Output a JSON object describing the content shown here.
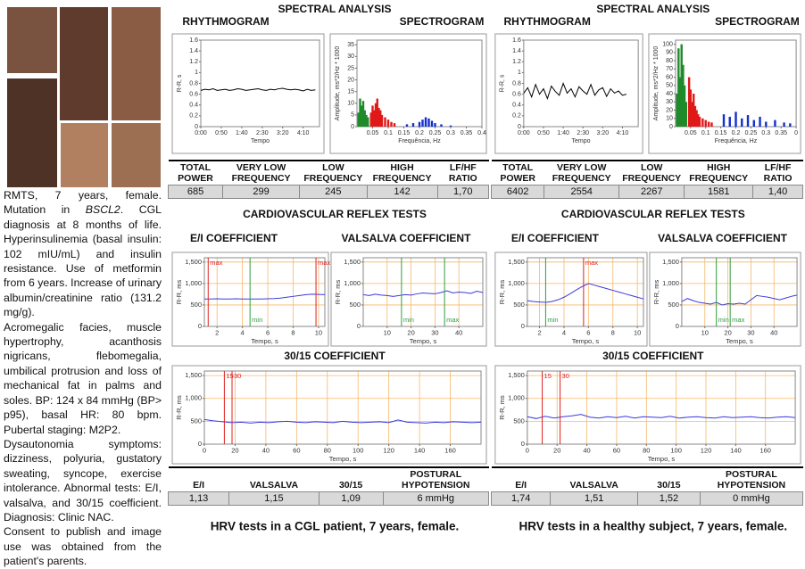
{
  "case": {
    "paragraphs": [
      [
        "RMTS, 7 years, female. Mutation in ",
        "BSCL2",
        ". CGL diagnosis at 8 months of life. Hyperinsulinemia (basal insulin: 102 mIU/mL) and insulin resistance. Use of metformin from 6 years. Increase of urinary albumin/creatinine ratio (131.2 mg/g)."
      ],
      [
        "Acromegalic facies, muscle hypertrophy, acanthosis nigricans, flebomegalia, umbilical protrusion and loss of mechanical fat in palms and soles. BP: 124 x 84 mmHg (BP> p95), basal HR: 80 bpm. Pubertal staging: M2P2."
      ],
      [
        "Dysautonomia symptoms: dizziness, polyuria, gustatory sweating, syncope, exercise intolerance. Abnormal tests: E/I, valsalva, and 30/15 coefficient. Diagnosis: Clinic NAC."
      ],
      [
        "Consent to publish and image use was obtained from the patient's parents."
      ]
    ]
  },
  "panels": [
    {
      "spectral_title": "SPECTRAL ANALYSIS",
      "spectral_table": {
        "headers": [
          "TOTAL POWER",
          "VERY LOW FREQUENCY",
          "LOW FREQUENCY",
          "HIGH FREQUENCY",
          "LF/HF RATIO"
        ],
        "values": [
          "685",
          "299",
          "245",
          "142",
          "1,70"
        ]
      },
      "reflex_title": "CARDIOVASCULAR REFLEX TESTS",
      "reflex_table": {
        "headers": [
          "E/I",
          "VALSALVA",
          "30/15",
          "POSTURAL HYPOTENSION"
        ],
        "values": [
          "1,13",
          "1,15",
          "1,09",
          "6 mmHg"
        ]
      },
      "caption": "HRV tests in a CGL patient, 7 years, female."
    },
    {
      "spectral_title": "SPECTRAL ANALYSIS",
      "spectral_table": {
        "headers": [
          "TOTAL POWER",
          "VERY LOW FREQUENCY",
          "LOW FREQUENCY",
          "HIGH FREQUENCY",
          "LF/HF RATIO"
        ],
        "values": [
          "6402",
          "2554",
          "2267",
          "1581",
          "1,40"
        ]
      },
      "reflex_title": "CARDIOVASCULAR REFLEX TESTS",
      "reflex_table": {
        "headers": [
          "E/I",
          "VALSALVA",
          "30/15",
          "POSTURAL HYPOTENSION"
        ],
        "values": [
          "1,74",
          "1,51",
          "1,52",
          "0 mmHg"
        ]
      },
      "caption": "HRV tests in a healthy subject, 7 years, female."
    }
  ],
  "chart_data": [
    {
      "type": "line",
      "title": "RHYTHMOGRAM",
      "xlabel": "Tempo",
      "ylabel": "R-R, s",
      "x": [
        0,
        10,
        20,
        30,
        40,
        50,
        60,
        70,
        80,
        90,
        100,
        110,
        120,
        130,
        140,
        150,
        160,
        170,
        180,
        190,
        200,
        210,
        220,
        230,
        240,
        250,
        260,
        270,
        280
      ],
      "series": [
        {
          "color": "#000000",
          "values": [
            0.67,
            0.69,
            0.68,
            0.7,
            0.67,
            0.68,
            0.69,
            0.67,
            0.68,
            0.7,
            0.69,
            0.67,
            0.68,
            0.69,
            0.7,
            0.68,
            0.67,
            0.69,
            0.68,
            0.7,
            0.71,
            0.69,
            0.68,
            0.69,
            0.68,
            0.66,
            0.69,
            0.67,
            0.68
          ]
        }
      ],
      "xlim": [
        0,
        290
      ],
      "ylim": [
        0,
        1.6
      ],
      "xticks": [
        {
          "value": 0,
          "label": "0:00"
        },
        {
          "value": 50,
          "label": "0:50"
        },
        {
          "value": 100,
          "label": "1:40"
        },
        {
          "value": 150,
          "label": "2:30"
        },
        {
          "value": 200,
          "label": "3:20"
        },
        {
          "value": 250,
          "label": "4:10"
        }
      ],
      "yticks": [
        0,
        0.2,
        0.4,
        0.6,
        0.8,
        1,
        1.2,
        1.4,
        1.6
      ],
      "grid": false
    },
    {
      "type": "bar",
      "title": "SPECTROGRAM",
      "xlabel": "Frequência, Hz",
      "ylabel": "Amplitude, ms*2/Hz * 1000",
      "series": [
        {
          "color": "#1f8a2a",
          "x": [
            0.005,
            0.01,
            0.015,
            0.02,
            0.025,
            0.03,
            0.035
          ],
          "values": [
            6,
            12,
            9,
            11,
            7,
            5,
            4
          ]
        },
        {
          "color": "#e01818",
          "x": [
            0.045,
            0.05,
            0.055,
            0.06,
            0.065,
            0.07,
            0.075,
            0.08,
            0.09,
            0.1,
            0.11,
            0.12
          ],
          "values": [
            6,
            9,
            7,
            10,
            12,
            8,
            7,
            5,
            4,
            3,
            2,
            1.5
          ]
        },
        {
          "color": "#1030d0",
          "x": [
            0.16,
            0.18,
            0.2,
            0.21,
            0.22,
            0.23,
            0.24,
            0.25,
            0.27,
            0.3
          ],
          "values": [
            1,
            1.5,
            2,
            3,
            4,
            3.5,
            2.5,
            1.5,
            1,
            0.5
          ]
        }
      ],
      "xlim": [
        0,
        0.4
      ],
      "ylim": [
        0,
        37
      ],
      "xticks": [
        0.05,
        0.1,
        0.15,
        0.2,
        0.25,
        0.3,
        0.35,
        0.4
      ],
      "yticks": [
        0,
        5,
        10,
        15,
        20,
        25,
        30,
        35
      ],
      "grid": false
    },
    {
      "type": "line",
      "title": "E/I COEFFICIENT",
      "xlabel": "Tempo, s",
      "ylabel": "R-R, ms",
      "x": [
        1,
        1.5,
        2,
        2.5,
        3,
        3.5,
        4,
        4.5,
        5,
        5.5,
        6,
        6.5,
        7,
        7.5,
        8,
        8.5,
        9,
        9.5,
        10,
        10.5
      ],
      "series": [
        {
          "color": "#3a3ae0",
          "values": [
            640,
            640,
            645,
            640,
            640,
            645,
            640,
            640,
            640,
            640,
            645,
            650,
            660,
            680,
            700,
            720,
            740,
            750,
            745,
            740
          ]
        }
      ],
      "markers": [
        {
          "label": "max",
          "x": 1.3,
          "color": "#e02020"
        },
        {
          "label": "min",
          "x": 4.6,
          "color": "#2e9e3e"
        },
        {
          "label": "max",
          "x": 9.8,
          "color": "#e02020"
        }
      ],
      "xlim": [
        1,
        10.5
      ],
      "ylim": [
        0,
        1600
      ],
      "xticks": [
        2,
        4,
        6,
        8,
        10
      ],
      "yticks": [
        0,
        500,
        {
          "value": 1000,
          "label": "1,000"
        },
        {
          "value": 1500,
          "label": "1,500"
        }
      ],
      "grid": true,
      "grid_color": "#f5b86b"
    },
    {
      "type": "line",
      "title": "VALSALVA COEFFICIENT",
      "xlabel": "Tempo, s",
      "ylabel": "R-R, ms",
      "x": [
        0,
        2.5,
        5,
        7.5,
        10,
        12.5,
        15,
        17.5,
        20,
        22.5,
        25,
        27.5,
        30,
        32.5,
        35,
        37.5,
        40,
        42.5,
        45,
        47.5,
        50
      ],
      "series": [
        {
          "color": "#3a3ae0",
          "values": [
            740,
            720,
            750,
            730,
            720,
            700,
            720,
            740,
            730,
            760,
            780,
            770,
            760,
            790,
            830,
            780,
            800,
            790,
            770,
            820,
            790
          ]
        }
      ],
      "markers": [
        {
          "label": "min",
          "x": 16,
          "color": "#2e9e3e"
        },
        {
          "label": "max",
          "x": 34,
          "color": "#2e9e3e"
        }
      ],
      "xlim": [
        0,
        50
      ],
      "ylim": [
        0,
        1600
      ],
      "xticks": [
        10,
        20,
        30,
        40
      ],
      "yticks": [
        0,
        500,
        {
          "value": 1000,
          "label": "1,000"
        },
        {
          "value": 1500,
          "label": "1,500"
        }
      ],
      "grid": true,
      "grid_color": "#f5b86b"
    },
    {
      "type": "line",
      "title": "30/15 COEFFICIENT",
      "xlabel": "Tempo, s",
      "ylabel": "R-R, ms",
      "x": [
        0,
        6,
        12,
        18,
        24,
        30,
        36,
        42,
        48,
        54,
        60,
        66,
        72,
        78,
        84,
        90,
        96,
        102,
        108,
        114,
        120,
        126,
        132,
        138,
        144,
        150,
        156,
        162,
        168,
        174,
        180
      ],
      "series": [
        {
          "color": "#3a3ae0",
          "values": [
            540,
            510,
            490,
            470,
            480,
            460,
            480,
            470,
            490,
            500,
            480,
            470,
            490,
            480,
            470,
            500,
            480,
            470,
            480,
            490,
            470,
            530,
            480,
            470,
            460,
            480,
            470,
            490,
            480,
            470,
            480
          ]
        }
      ],
      "markers": [
        {
          "label": "15",
          "x": 13,
          "color": "#e02020"
        },
        {
          "label": "30",
          "x": 18,
          "color": "#e02020"
        }
      ],
      "xlim": [
        0,
        180
      ],
      "ylim": [
        0,
        1600
      ],
      "xticks": [
        0,
        20,
        40,
        60,
        80,
        100,
        120,
        140,
        160
      ],
      "yticks": [
        0,
        500,
        {
          "value": 1000,
          "label": "1,000"
        },
        {
          "value": 1500,
          "label": "1,500"
        }
      ],
      "grid": true,
      "grid_color": "#f5b86b"
    },
    {
      "type": "line",
      "title": "RHYTHMOGRAM",
      "xlabel": "Tempo",
      "ylabel": "R-R, s",
      "x": [
        0,
        10,
        20,
        30,
        40,
        50,
        60,
        70,
        80,
        90,
        100,
        110,
        120,
        130,
        140,
        150,
        160,
        170,
        180,
        190,
        200,
        210,
        220,
        230,
        240,
        250,
        260
      ],
      "series": [
        {
          "color": "#000000",
          "values": [
            0.62,
            0.72,
            0.55,
            0.78,
            0.6,
            0.7,
            0.52,
            0.75,
            0.65,
            0.58,
            0.8,
            0.62,
            0.7,
            0.55,
            0.74,
            0.66,
            0.6,
            0.78,
            0.58,
            0.68,
            0.72,
            0.56,
            0.7,
            0.62,
            0.66,
            0.58,
            0.6
          ]
        }
      ],
      "xlim": [
        0,
        290
      ],
      "ylim": [
        0,
        1.6
      ],
      "xticks": [
        {
          "value": 0,
          "label": "0:00"
        },
        {
          "value": 50,
          "label": "0:50"
        },
        {
          "value": 100,
          "label": "1:40"
        },
        {
          "value": 150,
          "label": "2:30"
        },
        {
          "value": 200,
          "label": "3:20"
        },
        {
          "value": 250,
          "label": "4:10"
        }
      ],
      "yticks": [
        0,
        0.2,
        0.4,
        0.6,
        0.8,
        1,
        1.2,
        1.4,
        1.6
      ],
      "grid": false
    },
    {
      "type": "bar",
      "title": "SPECTROGRAM",
      "xlabel": "Frequência, Hz",
      "ylabel": "Amplitude, ms*2/Hz * 1000",
      "series": [
        {
          "color": "#1f8a2a",
          "x": [
            0.005,
            0.01,
            0.015,
            0.02,
            0.025,
            0.03,
            0.035
          ],
          "values": [
            40,
            95,
            60,
            100,
            75,
            50,
            30
          ]
        },
        {
          "color": "#e01818",
          "x": [
            0.045,
            0.05,
            0.055,
            0.06,
            0.065,
            0.07,
            0.075,
            0.08,
            0.09,
            0.1,
            0.11,
            0.12
          ],
          "values": [
            60,
            45,
            30,
            40,
            25,
            20,
            15,
            12,
            10,
            8,
            6,
            5
          ]
        },
        {
          "color": "#1030d0",
          "x": [
            0.16,
            0.18,
            0.2,
            0.22,
            0.24,
            0.26,
            0.28,
            0.3,
            0.33,
            0.36,
            0.38
          ],
          "values": [
            15,
            12,
            18,
            10,
            14,
            8,
            12,
            6,
            8,
            5,
            4
          ]
        }
      ],
      "xlim": [
        0,
        0.4
      ],
      "ylim": [
        0,
        105
      ],
      "xticks": [
        0.05,
        0.1,
        0.15,
        0.2,
        0.25,
        0.3,
        0.35,
        {
          "value": 0.4,
          "label": "0"
        }
      ],
      "yticks": [
        0,
        10,
        20,
        30,
        40,
        50,
        60,
        70,
        80,
        90,
        100
      ],
      "grid": false
    },
    {
      "type": "line",
      "title": "E/I COEFFICIENT",
      "xlabel": "Tempo, s",
      "ylabel": "R-R, ms",
      "x": [
        1,
        1.5,
        2,
        2.5,
        3,
        3.5,
        4,
        4.5,
        5,
        5.5,
        6,
        6.5,
        7,
        7.5,
        8,
        8.5,
        9,
        9.5,
        10,
        10.5
      ],
      "series": [
        {
          "color": "#3a3ae0",
          "values": [
            600,
            580,
            570,
            560,
            580,
            620,
            680,
            760,
            850,
            930,
            1000,
            960,
            920,
            880,
            840,
            800,
            760,
            720,
            680,
            640
          ]
        }
      ],
      "markers": [
        {
          "label": "min",
          "x": 2.5,
          "color": "#2e9e3e"
        },
        {
          "label": "max",
          "x": 5.6,
          "color": "#e02020"
        }
      ],
      "xlim": [
        1,
        10.5
      ],
      "ylim": [
        0,
        1600
      ],
      "xticks": [
        2,
        4,
        6,
        8,
        10
      ],
      "yticks": [
        0,
        500,
        {
          "value": 1000,
          "label": "1,000"
        },
        {
          "value": 1500,
          "label": "1,500"
        }
      ],
      "grid": true,
      "grid_color": "#f5b86b"
    },
    {
      "type": "line",
      "title": "VALSALVA COEFFICIENT",
      "xlabel": "Tempo, s",
      "ylabel": "R-R, ms",
      "x": [
        0,
        2.5,
        5,
        7.5,
        10,
        12.5,
        15,
        17.5,
        20,
        22.5,
        25,
        27.5,
        30,
        32.5,
        35,
        37.5,
        40,
        42.5,
        45,
        47.5,
        50
      ],
      "series": [
        {
          "color": "#3a3ae0",
          "values": [
            580,
            650,
            600,
            560,
            540,
            520,
            560,
            500,
            530,
            520,
            540,
            520,
            620,
            720,
            700,
            680,
            650,
            620,
            660,
            700,
            730
          ]
        }
      ],
      "markers": [
        {
          "label": "min",
          "x": 15,
          "color": "#2e9e3e"
        },
        {
          "label": "max",
          "x": 21,
          "color": "#2e9e3e"
        }
      ],
      "xlim": [
        0,
        50
      ],
      "ylim": [
        0,
        1600
      ],
      "xticks": [
        10,
        20,
        30,
        40
      ],
      "yticks": [
        0,
        500,
        {
          "value": 1000,
          "label": "1,000"
        },
        {
          "value": 1500,
          "label": "1,500"
        }
      ],
      "grid": true,
      "grid_color": "#f5b86b"
    },
    {
      "type": "line",
      "title": "30/15 COEFFICIENT",
      "xlabel": "Tempo, s",
      "ylabel": "R-R, ms",
      "x": [
        0,
        6,
        12,
        18,
        24,
        30,
        36,
        42,
        48,
        54,
        60,
        66,
        72,
        78,
        84,
        90,
        96,
        102,
        108,
        114,
        120,
        126,
        132,
        138,
        144,
        150,
        156,
        162,
        168,
        174,
        180
      ],
      "series": [
        {
          "color": "#3a3ae0",
          "values": [
            600,
            560,
            610,
            570,
            600,
            620,
            650,
            590,
            570,
            600,
            580,
            610,
            570,
            600,
            590,
            580,
            610,
            570,
            590,
            600,
            580,
            570,
            600,
            580,
            590,
            600,
            580,
            570,
            590,
            600,
            580
          ]
        }
      ],
      "markers": [
        {
          "label": "15",
          "x": 10,
          "color": "#e02020"
        },
        {
          "label": "30",
          "x": 22,
          "color": "#e02020"
        }
      ],
      "xlim": [
        0,
        180
      ],
      "ylim": [
        0,
        1600
      ],
      "xticks": [
        0,
        20,
        40,
        60,
        80,
        100,
        120,
        140,
        160
      ],
      "yticks": [
        0,
        500,
        {
          "value": 1000,
          "label": "1,000"
        },
        {
          "value": 1500,
          "label": "1,500"
        }
      ],
      "grid": true,
      "grid_color": "#f5b86b"
    }
  ]
}
